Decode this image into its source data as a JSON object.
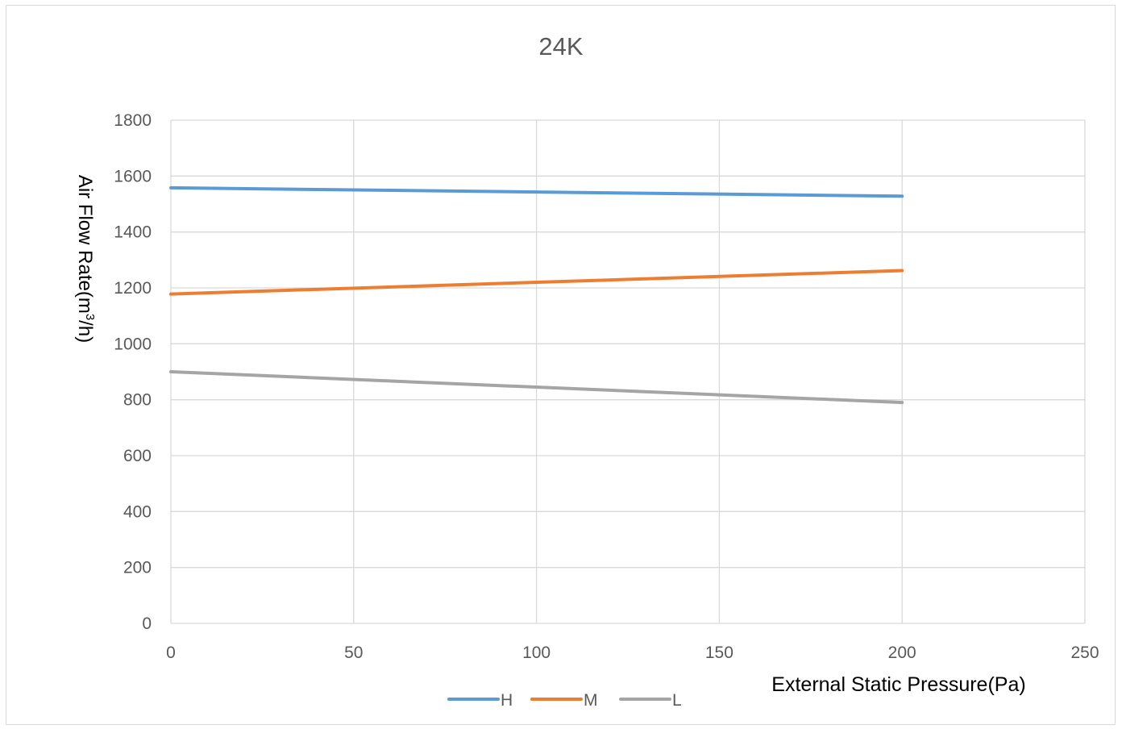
{
  "chart_data": {
    "type": "line",
    "title": "24K",
    "xlabel": "External Static Pressure(Pa)",
    "ylabel_main": "Air Flow Rate(m",
    "ylabel_sup": "3",
    "ylabel_tail": "/h)",
    "xlim": [
      0,
      250
    ],
    "ylim": [
      0,
      1800
    ],
    "x_ticks": [
      0,
      50,
      100,
      150,
      200,
      250
    ],
    "y_ticks": [
      0,
      200,
      400,
      600,
      800,
      1000,
      1200,
      1400,
      1600,
      1800
    ],
    "grid": true,
    "legend_position": "bottom",
    "x": [
      0,
      200
    ],
    "series": [
      {
        "name": "H",
        "color": "#5b9bd5",
        "values": [
          1558,
          1528
        ]
      },
      {
        "name": "M",
        "color": "#ed7d31",
        "values": [
          1178,
          1262
        ]
      },
      {
        "name": "L",
        "color": "#a5a5a5",
        "values": [
          900,
          790
        ]
      }
    ]
  }
}
